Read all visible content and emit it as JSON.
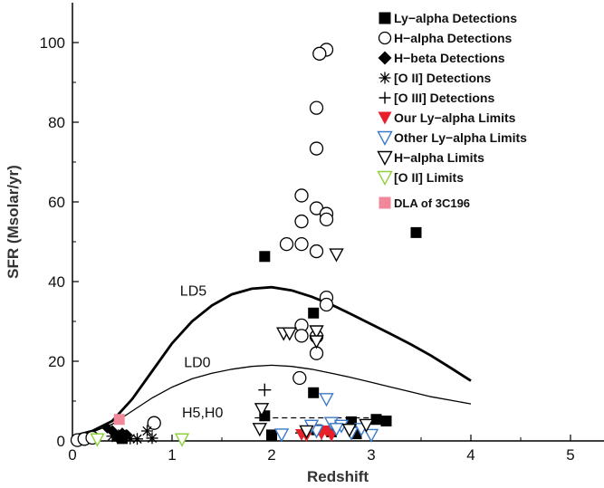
{
  "chart_data": {
    "type": "scatter",
    "xlabel": "Redshift",
    "ylabel": "SFR (Msolar/yr)",
    "xlim": [
      0,
      5.3
    ],
    "ylim": [
      0,
      110
    ],
    "xticks": [
      0,
      1,
      2,
      3,
      4,
      5
    ],
    "yticks": [
      0,
      20,
      40,
      60,
      80,
      100
    ],
    "legend_position": "top-right",
    "series": [
      {
        "name": "Ly-alpha Detections",
        "marker": "square-filled",
        "color": "#000000",
        "points": [
          [
            1.93,
            46.3
          ],
          [
            2.42,
            32.1
          ],
          [
            2.42,
            12.1
          ],
          [
            1.93,
            6.3
          ],
          [
            3.45,
            52.3
          ],
          [
            3.05,
            5.4
          ],
          [
            3.15,
            5.0
          ],
          [
            2.8,
            4.8
          ],
          [
            2.0,
            1.5
          ],
          [
            2.45,
            2.8
          ],
          [
            2.6,
            2.3
          ],
          [
            2.85,
            1.8
          ],
          [
            0.45,
            1.2
          ],
          [
            0.5,
            0.6
          ]
        ]
      },
      {
        "name": "H-alpha Detections",
        "marker": "circle-open",
        "color": "#000000",
        "points": [
          [
            2.55,
            98.2
          ],
          [
            2.48,
            97.2
          ],
          [
            2.45,
            83.6
          ],
          [
            2.45,
            73.4
          ],
          [
            2.3,
            61.6
          ],
          [
            2.45,
            58.4
          ],
          [
            2.55,
            57.0
          ],
          [
            2.55,
            55.6
          ],
          [
            2.3,
            55.1
          ],
          [
            2.15,
            49.4
          ],
          [
            2.3,
            49.4
          ],
          [
            2.45,
            47.6
          ],
          [
            2.55,
            36.0
          ],
          [
            2.55,
            34.2
          ],
          [
            2.3,
            29.0
          ],
          [
            2.3,
            26.4
          ],
          [
            2.45,
            26.2
          ],
          [
            2.45,
            22.0
          ],
          [
            2.28,
            15.8
          ],
          [
            0.82,
            4.5
          ],
          [
            0.05,
            0.2
          ],
          [
            0.12,
            0.5
          ],
          [
            0.2,
            0.8
          ]
        ]
      },
      {
        "name": "H-beta Detections",
        "marker": "diamond-filled",
        "color": "#000000",
        "points": [
          [
            0.35,
            3.2
          ],
          [
            0.4,
            2.6
          ],
          [
            0.5,
            2.0
          ],
          [
            0.55,
            1.5
          ],
          [
            0.45,
            0.8
          ]
        ]
      },
      {
        "name": "[O II] Detections",
        "marker": "asterisk",
        "color": "#000000",
        "points": [
          [
            0.4,
            1.2
          ],
          [
            0.5,
            1.8
          ],
          [
            0.58,
            0.6
          ],
          [
            0.65,
            0.5
          ],
          [
            0.75,
            2.5
          ],
          [
            0.8,
            0.7
          ]
        ]
      },
      {
        "name": "[O III] Detections",
        "marker": "plus",
        "color": "#000000",
        "points": [
          [
            1.93,
            12.8
          ],
          [
            2.3,
            2.0
          ]
        ]
      },
      {
        "name": "Our Ly-alpha Limits",
        "marker": "triangle-down-filled",
        "color": "#e8202a",
        "points": [
          [
            2.3,
            1.6
          ],
          [
            2.35,
            1.3
          ],
          [
            2.5,
            1.8
          ],
          [
            2.55,
            2.5
          ],
          [
            2.6,
            1.4
          ]
        ]
      },
      {
        "name": "Other Ly-alpha Limits",
        "marker": "triangle-down-open",
        "color": "#3a78c8",
        "points": [
          [
            2.55,
            10.5
          ],
          [
            2.45,
            2.5
          ],
          [
            2.6,
            4.5
          ],
          [
            2.7,
            3.8
          ],
          [
            2.8,
            2.0
          ],
          [
            2.9,
            3.0
          ],
          [
            3.0,
            1.5
          ],
          [
            2.1,
            1.6
          ],
          [
            2.4,
            3.8
          ],
          [
            2.65,
            3.0
          ]
        ]
      },
      {
        "name": "H-alpha Limits",
        "marker": "triangle-down-open",
        "color": "#000000",
        "points": [
          [
            2.65,
            46.8
          ],
          [
            2.12,
            27.0
          ],
          [
            2.18,
            27.0
          ],
          [
            2.45,
            27.5
          ],
          [
            2.45,
            25.0
          ],
          [
            1.9,
            8.0
          ],
          [
            1.88,
            3.0
          ],
          [
            2.35,
            2.4
          ],
          [
            2.78,
            2.8
          ],
          [
            2.95,
            4.0
          ]
        ]
      },
      {
        "name": "[O II] Limits",
        "marker": "triangle-down-open",
        "color": "#8fd13a",
        "points": [
          [
            0.25,
            0.4
          ],
          [
            1.1,
            0.4
          ]
        ]
      },
      {
        "name": "DLA of 3C196",
        "marker": "square-filled",
        "color": "#f0889a",
        "points": [
          [
            0.47,
            5.4
          ]
        ]
      }
    ],
    "curves": [
      {
        "name": "LD5",
        "points": [
          [
            0,
            1.2
          ],
          [
            0.2,
            2.5
          ],
          [
            0.4,
            5.0
          ],
          [
            0.6,
            10.5
          ],
          [
            0.8,
            17.5
          ],
          [
            1.0,
            24.5
          ],
          [
            1.2,
            30.0
          ],
          [
            1.4,
            34.0
          ],
          [
            1.6,
            36.8
          ],
          [
            1.8,
            38.2
          ],
          [
            2.0,
            38.6
          ],
          [
            2.2,
            37.8
          ],
          [
            2.4,
            36.2
          ],
          [
            2.6,
            34.2
          ],
          [
            2.8,
            31.8
          ],
          [
            3.0,
            29.3
          ],
          [
            3.2,
            26.8
          ],
          [
            3.4,
            24.2
          ],
          [
            3.6,
            21.4
          ],
          [
            3.8,
            18.3
          ],
          [
            4.0,
            15.1
          ]
        ],
        "width": 2.8
      },
      {
        "name": "LD0",
        "points": [
          [
            0,
            1.0
          ],
          [
            0.2,
            2.2
          ],
          [
            0.4,
            4.2
          ],
          [
            0.6,
            7.5
          ],
          [
            0.8,
            10.8
          ],
          [
            1.0,
            13.5
          ],
          [
            1.2,
            15.6
          ],
          [
            1.4,
            17.0
          ],
          [
            1.6,
            18.0
          ],
          [
            1.8,
            18.7
          ],
          [
            2.0,
            19.0
          ],
          [
            2.2,
            18.7
          ],
          [
            2.4,
            18.0
          ],
          [
            2.6,
            17.0
          ],
          [
            2.8,
            15.9
          ],
          [
            3.0,
            14.7
          ],
          [
            3.2,
            13.5
          ],
          [
            3.4,
            12.3
          ],
          [
            3.6,
            11.1
          ],
          [
            3.8,
            10.2
          ],
          [
            4.0,
            9.3
          ]
        ],
        "width": 1.3
      },
      {
        "name": "H5,H0",
        "points": [
          [
            1.83,
            5.8
          ],
          [
            3.0,
            5.8
          ]
        ],
        "width": 1.3,
        "dashed": true
      }
    ],
    "curve_labels": [
      {
        "text": "LD5",
        "x": 1.08,
        "y": 36.5
      },
      {
        "text": "LD0",
        "x": 1.12,
        "y": 18.5
      },
      {
        "text": "H5,H0",
        "x": 1.1,
        "y": 5.9
      }
    ],
    "legend": [
      {
        "label": "Ly−alpha Detections",
        "marker": "square-filled",
        "color": "#000000"
      },
      {
        "label": "H−alpha Detections",
        "marker": "circle-open",
        "color": "#000000"
      },
      {
        "label": "H−beta Detections",
        "marker": "diamond-filled",
        "color": "#000000"
      },
      {
        "label": "[O II] Detections",
        "marker": "asterisk",
        "color": "#000000"
      },
      {
        "label": "[O III] Detections",
        "marker": "plus",
        "color": "#000000"
      },
      {
        "label": "Our Ly−alpha Limits",
        "marker": "triangle-down-filled",
        "color": "#e8202a"
      },
      {
        "label": "Other Ly−alpha Limits",
        "marker": "triangle-down-open",
        "color": "#3a78c8"
      },
      {
        "label": "H−alpha Limits",
        "marker": "triangle-down-open",
        "color": "#000000"
      },
      {
        "label": "[O II] Limits",
        "marker": "triangle-down-open",
        "color": "#8fd13a"
      },
      {
        "label": "DLA of 3C196",
        "marker": "square-filled",
        "color": "#f0889a"
      }
    ]
  }
}
